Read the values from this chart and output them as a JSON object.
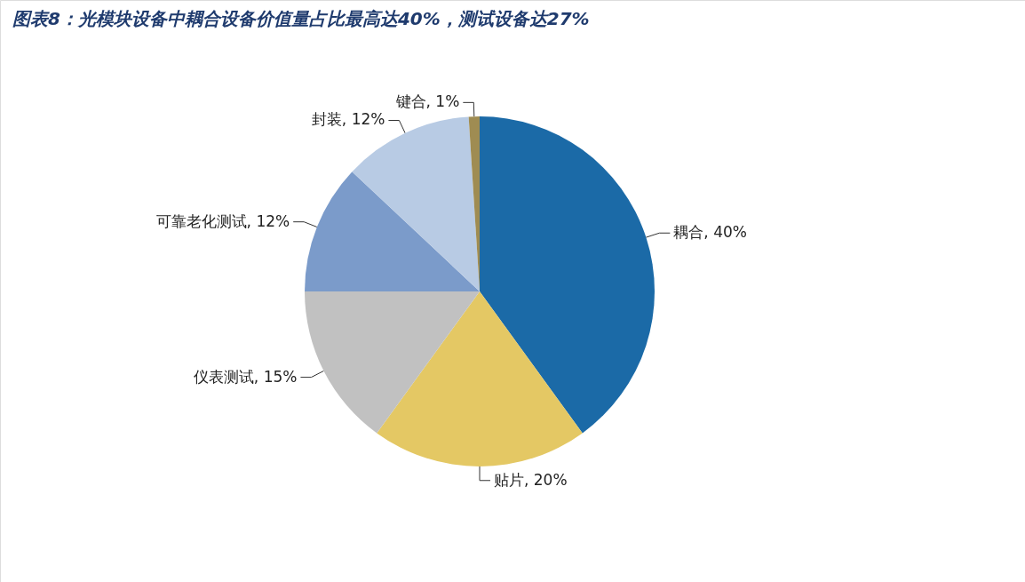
{
  "chart_data": {
    "type": "pie",
    "title": "图表8：光模块设备中耦合设备价值量占比最高达40%，测试设备达27%",
    "categories": [
      "耦合",
      "贴片",
      "仪表测试",
      "可靠老化测试",
      "封装",
      "键合"
    ],
    "values": [
      40,
      20,
      15,
      12,
      12,
      1
    ],
    "value_labels": [
      "40%",
      "20%",
      "15%",
      "12%",
      "12%",
      "1%"
    ],
    "colors": [
      "#1b6aa7",
      "#e4c864",
      "#c1c1c1",
      "#7b9bca",
      "#b8cbe4",
      "#9f8c52"
    ]
  }
}
